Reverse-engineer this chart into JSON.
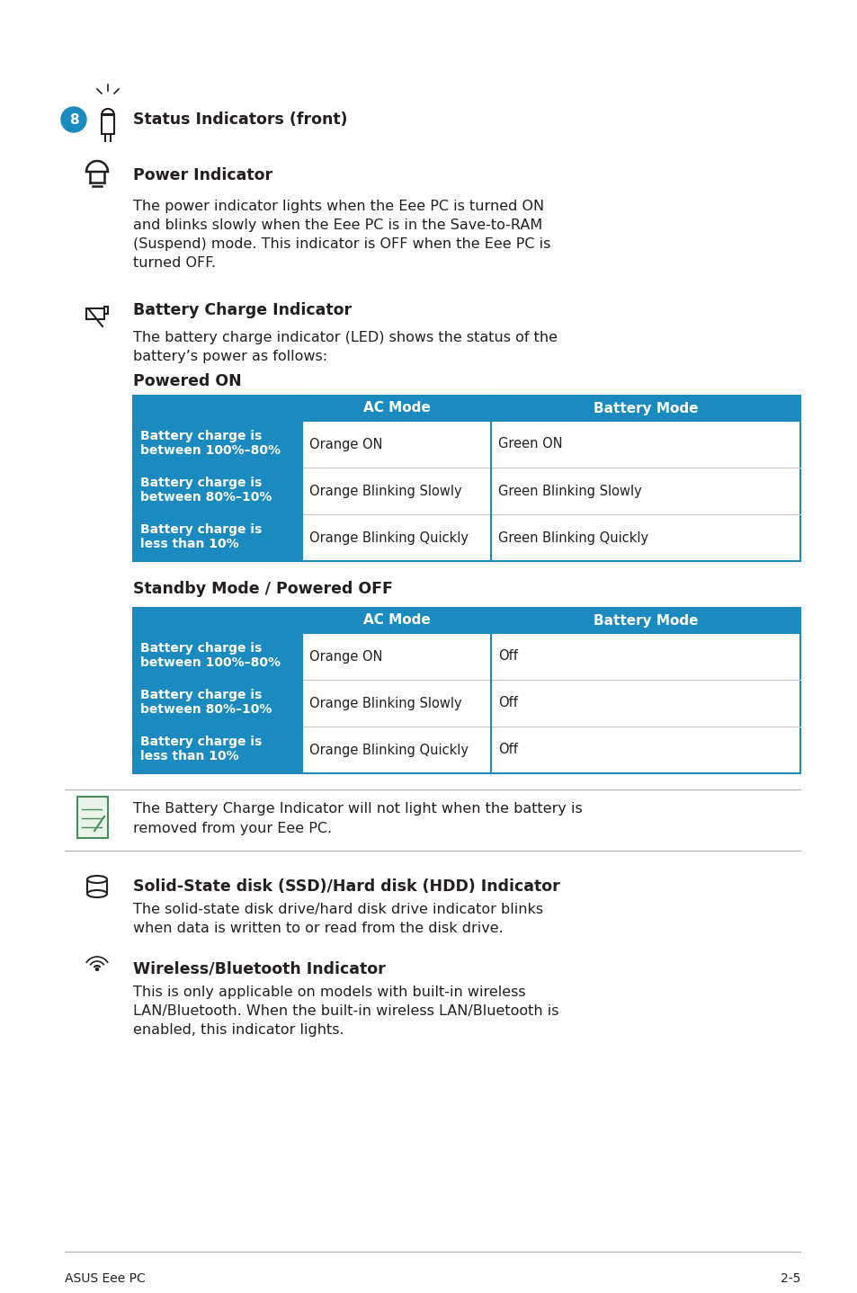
{
  "bg_color": "#ffffff",
  "text_color": "#231f20",
  "blue_header": "#1a8abf",
  "blue_circle": "#1a8abf",
  "table_border": "#1a8abf",
  "table_row_border": "#c8c8c8",
  "note_border_color": "#4a8c5c",
  "section8_heading": "Status Indicators (front)",
  "power_heading": "Power Indicator",
  "power_text_lines": [
    "The power indicator lights when the Eee PC is turned ON",
    "and blinks slowly when the Eee PC is in the Save-to-RAM",
    "(Suspend) mode. This indicator is OFF when the Eee PC is",
    "turned OFF."
  ],
  "battery_heading": "Battery Charge Indicator",
  "battery_text_lines": [
    "The battery charge indicator (LED) shows the status of the",
    "battery’s power as follows:"
  ],
  "powered_on_heading": "Powered ON",
  "table1_rows": [
    [
      "Battery charge is\nbetween 100%–80%",
      "Orange ON",
      "Green ON"
    ],
    [
      "Battery charge is\nbetween 80%–10%",
      "Orange Blinking Slowly",
      "Green Blinking Slowly"
    ],
    [
      "Battery charge is\nless than 10%",
      "Orange Blinking Quickly",
      "Green Blinking Quickly"
    ]
  ],
  "standby_heading": "Standby Mode / Powered OFF",
  "table2_rows": [
    [
      "Battery charge is\nbetween 100%–80%",
      "Orange ON",
      "Off"
    ],
    [
      "Battery charge is\nbetween 80%–10%",
      "Orange Blinking Slowly",
      "Off"
    ],
    [
      "Battery charge is\nless than 10%",
      "Orange Blinking Quickly",
      "Off"
    ]
  ],
  "note_text_lines": [
    "The Battery Charge Indicator will not light when the battery is",
    "removed from your Eee PC."
  ],
  "ssd_heading": "Solid-State disk (SSD)/Hard disk (HDD) Indicator",
  "ssd_text_lines": [
    "The solid-state disk drive/hard disk drive indicator blinks",
    "when data is written to or read from the disk drive."
  ],
  "wifi_heading": "Wireless/Bluetooth Indicator",
  "wifi_text_lines": [
    "This is only applicable on models with built-in wireless",
    "LAN/Bluetooth. When the built-in wireless LAN/Bluetooth is",
    "enabled, this indicator lights."
  ],
  "footer_left": "ASUS Eee PC",
  "footer_right": "2-5"
}
